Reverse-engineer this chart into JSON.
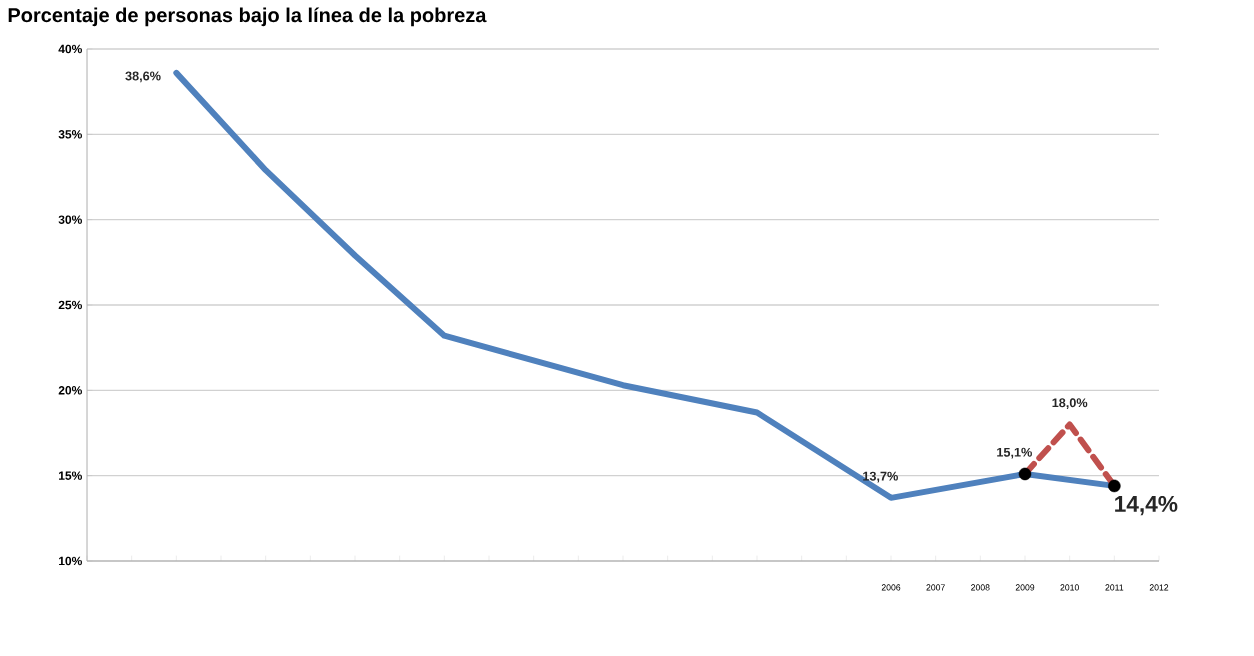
{
  "chart_data": {
    "type": "line",
    "title": "Porcentaje de personas bajo la línea de la pobreza",
    "categories": [
      null,
      null,
      null,
      null,
      null,
      null,
      null,
      null,
      null,
      null,
      null,
      null,
      null,
      null,
      null,
      null,
      null,
      null,
      "2006",
      "2007",
      "2008",
      "2009",
      "2010",
      "2011",
      "2012"
    ],
    "ylim": [
      10,
      40
    ],
    "yticks": [
      {
        "value": 10,
        "label": "10%"
      },
      {
        "value": 15,
        "label": "15%"
      },
      {
        "value": 20,
        "label": "20%"
      },
      {
        "value": 25,
        "label": "25%"
      },
      {
        "value": 30,
        "label": "30%"
      },
      {
        "value": 35,
        "label": "35%"
      },
      {
        "value": 40,
        "label": "40%"
      }
    ],
    "grid": "y",
    "series": [
      {
        "color": "#4f81bd",
        "marker": "none",
        "line_style": "solid",
        "values": [
          null,
          null,
          38.6,
          null,
          32.9,
          null,
          27.9,
          null,
          23.2,
          null,
          null,
          null,
          20.3,
          null,
          null,
          18.7,
          null,
          null,
          13.7,
          null,
          null,
          15.1,
          null,
          14.4,
          null
        ],
        "value_labels": [
          null,
          null,
          "38,6%",
          null,
          null,
          null,
          null,
          null,
          null,
          null,
          null,
          null,
          null,
          null,
          null,
          null,
          null,
          null,
          "13,7%",
          null,
          null,
          "15,1%",
          null,
          null,
          null
        ]
      },
      {
        "color": "#c0504d",
        "marker": "none",
        "line_style": "dashed",
        "values": [
          null,
          null,
          null,
          null,
          null,
          null,
          null,
          null,
          null,
          null,
          null,
          null,
          null,
          null,
          null,
          null,
          null,
          null,
          null,
          null,
          null,
          15.1,
          18.0,
          14.4,
          null
        ],
        "value_labels": [
          null,
          null,
          null,
          null,
          null,
          null,
          null,
          null,
          null,
          null,
          null,
          null,
          null,
          null,
          null,
          null,
          null,
          null,
          null,
          null,
          null,
          null,
          "18,0%",
          null,
          null
        ]
      },
      {
        "type": "scatter",
        "color": "#000000",
        "marker": "circle",
        "values": [
          null,
          null,
          null,
          null,
          null,
          null,
          null,
          null,
          null,
          null,
          null,
          null,
          null,
          null,
          null,
          null,
          null,
          null,
          null,
          null,
          null,
          15.1,
          null,
          14.4,
          null
        ],
        "value_labels": [
          null,
          null,
          null,
          null,
          null,
          null,
          null,
          null,
          null,
          null,
          null,
          null,
          null,
          null,
          null,
          null,
          null,
          null,
          null,
          null,
          null,
          null,
          null,
          "14,4%",
          null
        ]
      }
    ]
  }
}
